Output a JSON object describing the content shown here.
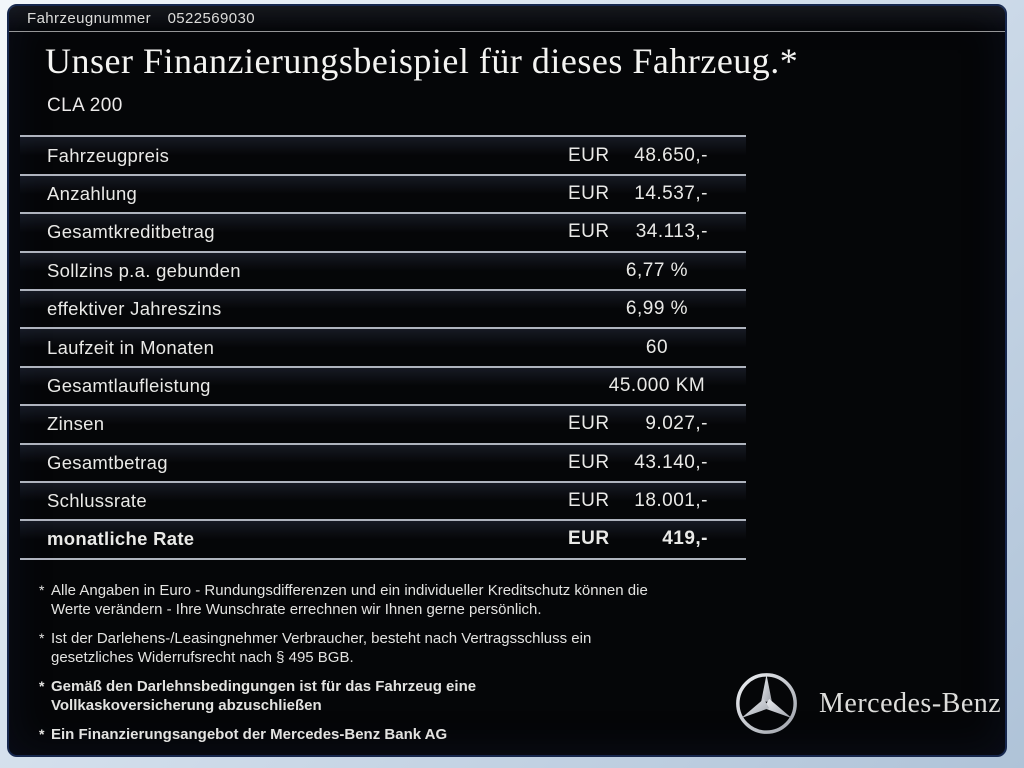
{
  "header": {
    "vehicle_number_label": "Fahrzeugnummer",
    "vehicle_number": "0522569030",
    "title": "Unser Finanzierungsbeispiel für dieses Fahrzeug.*",
    "model": "CLA 200"
  },
  "table": {
    "rows": [
      {
        "label": "Fahrzeugpreis",
        "currency": "EUR",
        "value": "48.650,-"
      },
      {
        "label": "Anzahlung",
        "currency": "EUR",
        "value": "14.537,-"
      },
      {
        "label": "Gesamtkreditbetrag",
        "currency": "EUR",
        "value": "34.113,-"
      },
      {
        "label": "Sollzins p.a. gebunden",
        "value": "6,77 %"
      },
      {
        "label": "effektiver Jahreszins",
        "value": "6,99 %"
      },
      {
        "label": "Laufzeit in Monaten",
        "value": "60"
      },
      {
        "label": "Gesamtlaufleistung",
        "value": "45.000 KM"
      },
      {
        "label": "Zinsen",
        "currency": "EUR",
        "value": "9.027,-"
      },
      {
        "label": "Gesamtbetrag",
        "currency": "EUR",
        "value": "43.140,-"
      },
      {
        "label": "Schlussrate",
        "currency": "EUR",
        "value": "18.001,-"
      },
      {
        "label": "monatliche Rate",
        "currency": "EUR",
        "value": "419,-",
        "bold": true
      }
    ]
  },
  "footnotes": [
    {
      "marker": "*",
      "bold": false,
      "lines": [
        "Alle Angaben in Euro - Rundungsdifferenzen und ein individueller Kreditschutz können die",
        "Werte verändern - Ihre Wunschrate errechnen wir Ihnen gerne persönlich."
      ]
    },
    {
      "marker": "*",
      "bold": false,
      "lines": [
        "Ist der Darlehens-/Leasingnehmer Verbraucher, besteht nach Vertragsschluss ein",
        "gesetzliches Widerrufsrecht nach § 495 BGB."
      ]
    },
    {
      "marker": "*",
      "bold": true,
      "lines": [
        "Gemäß den Darlehnsbedingungen ist für das Fahrzeug eine",
        "Vollkaskoversicherung abzuschließen"
      ]
    },
    {
      "marker": "*",
      "bold": true,
      "lines": [
        "Ein Finanzierungsangebot der Mercedes-Benz Bank AG"
      ]
    }
  ],
  "brand": {
    "logo_icon": "mercedes-star-icon",
    "wordmark": "Mercedes-Benz"
  },
  "colors": {
    "panel_background": "#050608",
    "panel_border": "#16274d",
    "frame_background": "#c7d6e6",
    "text": "#e9e9e7",
    "table_line": "#d6dae6",
    "logo_silver": "#d2d5db"
  }
}
